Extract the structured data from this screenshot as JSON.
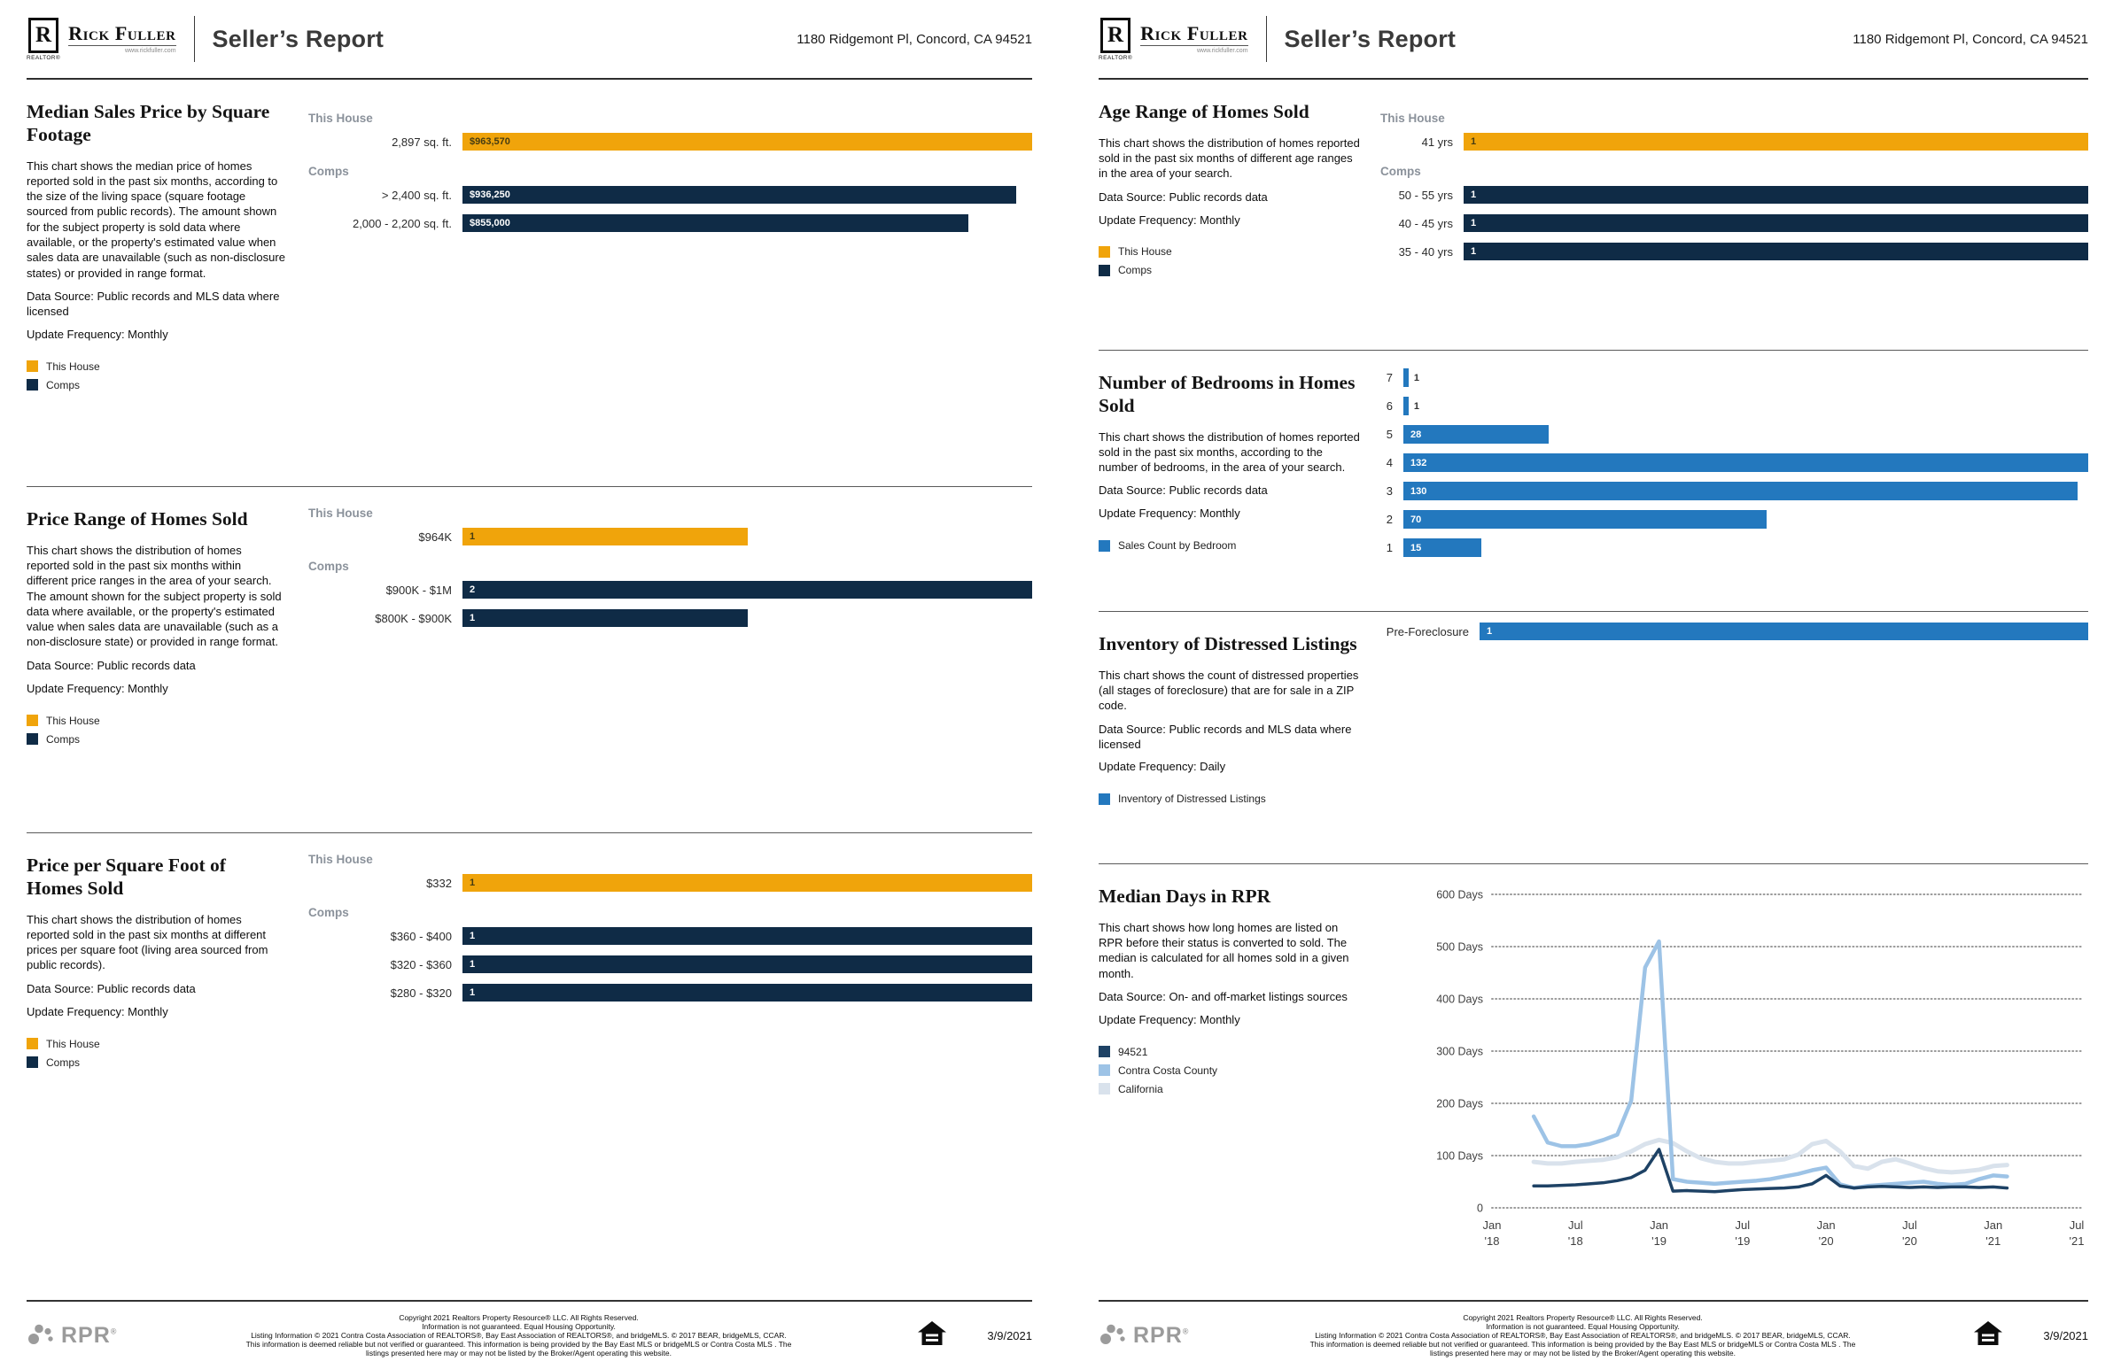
{
  "report": {
    "brand": {
      "logo_letter": "R",
      "realtor_label": "REALTOR®",
      "name": "Rick Fuller",
      "tagline": "www.rickfuller.com"
    },
    "title": "Seller’s Report",
    "address": "1180 Ridgemont Pl, Concord, CA 94521",
    "date": "3/9/2021",
    "rpr_name": "RPR",
    "rpr_reg": "®",
    "footer_lines": [
      "Copyright 2021 Realtors Property Resource® LLC. All Rights Reserved.",
      "Information is not guaranteed. Equal Housing Opportunity.",
      "Listing Information © 2021 Contra Costa Association of REALTORS®, Bay East Association of REALTORS®, and bridgeMLS. © 2017 BEAR, bridgeMLS, CCAR.",
      "This information is deemed reliable but not verified or guaranteed. This information is being provided by the Bay East MLS or bridgeMLS or Contra Costa MLS . The",
      "listings presented here may or may not be listed by the Broker/Agent operating this website."
    ]
  },
  "colors": {
    "gold": "#F0A40B",
    "navy": "#0F2B46",
    "blue": "#2378BE",
    "navy_line": "#1E4265",
    "light_blue": "#9DC3E6",
    "pale_blue": "#D9E2EC"
  },
  "sections": {
    "median_sales_price": {
      "title": "Median Sales Price by Square Footage",
      "description": "This chart shows the median price of homes reported sold in the past six months, according to the size of the living space (square footage sourced from public records). The amount shown for the subject property is sold data where available, or the property's estimated value when sales data are unavailable (such as non-disclosure states) or provided in range format.",
      "data_source": "Data Source: Public records and MLS data where licensed",
      "update_frequency": "Update Frequency: Monthly",
      "legend": [
        {
          "label": "This House",
          "color": "gold"
        },
        {
          "label": "Comps",
          "color": "navy"
        }
      ],
      "chart": {
        "type": "grouped_bar",
        "groups": [
          {
            "name": "This House",
            "color": "gold",
            "rows": [
              {
                "label": "2,897 sq. ft.",
                "value": 963570,
                "value_label": "$963,570"
              }
            ]
          },
          {
            "name": "Comps",
            "color": "navy",
            "rows": [
              {
                "label": "> 2,400 sq. ft.",
                "value": 936250,
                "value_label": "$936,250"
              },
              {
                "label": "2,000 - 2,200 sq. ft.",
                "value": 855000,
                "value_label": "$855,000"
              }
            ]
          }
        ]
      }
    },
    "price_range": {
      "title": "Price Range of Homes Sold",
      "description": "This chart shows the distribution of homes reported sold in the past six months within different price ranges in the area of your search. The amount shown for the subject property is sold data where available, or the property's estimated value when sales data are unavailable (such as a non-disclosure state) or provided in range format.",
      "data_source": "Data Source: Public records data",
      "update_frequency": "Update Frequency: Monthly",
      "legend": [
        {
          "label": "This House",
          "color": "gold"
        },
        {
          "label": "Comps",
          "color": "navy"
        }
      ],
      "chart": {
        "type": "grouped_bar",
        "groups": [
          {
            "name": "This House",
            "color": "gold",
            "rows": [
              {
                "label": "$964K",
                "value": 1,
                "value_label": "1"
              }
            ]
          },
          {
            "name": "Comps",
            "color": "navy",
            "rows": [
              {
                "label": "$900K - $1M",
                "value": 2,
                "value_label": "2"
              },
              {
                "label": "$800K - $900K",
                "value": 1,
                "value_label": "1"
              }
            ]
          }
        ]
      }
    },
    "price_per_sqft": {
      "title": "Price per Square Foot of Homes Sold",
      "description": "This chart shows the distribution of homes reported sold in the past six months at different prices per square foot (living area sourced from public records).",
      "data_source": "Data Source: Public records data",
      "update_frequency": "Update Frequency: Monthly",
      "legend": [
        {
          "label": "This House",
          "color": "gold"
        },
        {
          "label": "Comps",
          "color": "navy"
        }
      ],
      "chart": {
        "type": "grouped_bar",
        "groups": [
          {
            "name": "This House",
            "color": "gold",
            "rows": [
              {
                "label": "$332",
                "value": 1,
                "value_label": "1"
              }
            ]
          },
          {
            "name": "Comps",
            "color": "navy",
            "rows": [
              {
                "label": "$360 - $400",
                "value": 1,
                "value_label": "1"
              },
              {
                "label": "$320 - $360",
                "value": 1,
                "value_label": "1"
              },
              {
                "label": "$280 - $320",
                "value": 1,
                "value_label": "1"
              }
            ]
          }
        ]
      }
    },
    "age_range": {
      "title": "Age Range of Homes Sold",
      "description": "This chart shows the distribution of homes reported sold in the past six months of different age ranges in the area of your search.",
      "data_source": "Data Source: Public records data",
      "update_frequency": "Update Frequency: Monthly",
      "legend": [
        {
          "label": "This House",
          "color": "gold"
        },
        {
          "label": "Comps",
          "color": "navy"
        }
      ],
      "chart": {
        "type": "grouped_bar",
        "groups": [
          {
            "name": "This House",
            "color": "gold",
            "rows": [
              {
                "label": "41 yrs",
                "value": 1,
                "value_label": "1"
              }
            ]
          },
          {
            "name": "Comps",
            "color": "navy",
            "rows": [
              {
                "label": "50 - 55 yrs",
                "value": 1,
                "value_label": "1"
              },
              {
                "label": "40 - 45 yrs",
                "value": 1,
                "value_label": "1"
              },
              {
                "label": "35 - 40 yrs",
                "value": 1,
                "value_label": "1"
              }
            ]
          }
        ]
      }
    },
    "bedrooms": {
      "title": "Number of Bedrooms in Homes Sold",
      "description": "This chart shows the distribution of homes reported sold in the past six months, according to the number of bedrooms, in the area of your search.",
      "data_source": "Data Source: Public records data",
      "update_frequency": "Update Frequency: Monthly",
      "legend": [
        {
          "label": "Sales Count by Bedroom",
          "color": "blue"
        }
      ],
      "chart": {
        "type": "bar",
        "color": "blue",
        "rows": [
          {
            "label": "7",
            "value": 1,
            "value_label": "1"
          },
          {
            "label": "6",
            "value": 1,
            "value_label": "1"
          },
          {
            "label": "5",
            "value": 28,
            "value_label": "28"
          },
          {
            "label": "4",
            "value": 132,
            "value_label": "132"
          },
          {
            "label": "3",
            "value": 130,
            "value_label": "130"
          },
          {
            "label": "2",
            "value": 70,
            "value_label": "70"
          },
          {
            "label": "1",
            "value": 15,
            "value_label": "15"
          }
        ]
      }
    },
    "distressed": {
      "title": "Inventory of Distressed Listings",
      "description": "This chart shows the count of distressed properties (all stages of foreclosure) that are for sale in a ZIP code.",
      "data_source": "Data Source: Public records and MLS data where licensed",
      "update_frequency": "Update Frequency: Daily",
      "legend": [
        {
          "label": "Inventory of Distressed Listings",
          "color": "blue"
        }
      ],
      "chart": {
        "type": "bar",
        "color": "blue",
        "rows": [
          {
            "label": "Pre-Foreclosure",
            "value": 1,
            "value_label": "1"
          }
        ]
      }
    },
    "median_days": {
      "title": "Median Days in RPR",
      "description": "This chart shows how long homes are listed on RPR before their status is converted to sold. The median is calculated for all homes sold in a given month.",
      "data_source": "Data Source: On- and off-market listings sources",
      "update_frequency": "Update Frequency: Monthly",
      "legend": [
        {
          "label": "94521",
          "color": "navy_line"
        },
        {
          "label": "Contra Costa County",
          "color": "light_blue"
        },
        {
          "label": "California",
          "color": "pale_blue"
        }
      ],
      "chart": {
        "type": "line",
        "ylim": [
          0,
          600
        ],
        "y_ticks": [
          {
            "value": 600,
            "label": "600 Days"
          },
          {
            "value": 500,
            "label": "500 Days"
          },
          {
            "value": 400,
            "label": "400 Days"
          },
          {
            "value": 300,
            "label": "300 Days"
          },
          {
            "value": 200,
            "label": "200 Days"
          },
          {
            "value": 100,
            "label": "100 Days"
          },
          {
            "value": 0,
            "label": "0"
          }
        ],
        "x_ticks": [
          {
            "month": "Jan",
            "year": "'18"
          },
          {
            "month": "Jul",
            "year": "'18"
          },
          {
            "month": "Jan",
            "year": "'19"
          },
          {
            "month": "Jul",
            "year": "'19"
          },
          {
            "month": "Jan",
            "year": "'20"
          },
          {
            "month": "Jul",
            "year": "'20"
          },
          {
            "month": "Jan",
            "year": "'21"
          },
          {
            "month": "Jul",
            "year": "'21"
          }
        ],
        "months_domain": 42,
        "start_month_index": 3,
        "series": [
          {
            "name": "94521",
            "color": "navy_line",
            "values": [
              42,
              42,
              43,
              44,
              46,
              48,
              52,
              58,
              72,
              112,
              32,
              33,
              32,
              31,
              33,
              35,
              36,
              37,
              38,
              40,
              46,
              62,
              42,
              38,
              40,
              41,
              40,
              39,
              40,
              39,
              40,
              40,
              39,
              40,
              38
            ]
          },
          {
            "name": "Contra Costa County",
            "color": "light_blue",
            "values": [
              175,
              125,
              118,
              118,
              122,
              130,
              140,
              205,
              460,
              510,
              55,
              50,
              48,
              46,
              48,
              50,
              52,
              55,
              60,
              65,
              72,
              77,
              45,
              38,
              42,
              44,
              46,
              48,
              50,
              46,
              44,
              46,
              55,
              62,
              60
            ]
          },
          {
            "name": "California",
            "color": "pale_blue",
            "values": [
              88,
              85,
              85,
              88,
              90,
              92,
              97,
              108,
              122,
              130,
              124,
              108,
              95,
              88,
              85,
              85,
              88,
              90,
              93,
              102,
              122,
              128,
              108,
              80,
              75,
              88,
              93,
              85,
              76,
              70,
              68,
              70,
              73,
              80,
              82
            ]
          }
        ]
      }
    }
  }
}
